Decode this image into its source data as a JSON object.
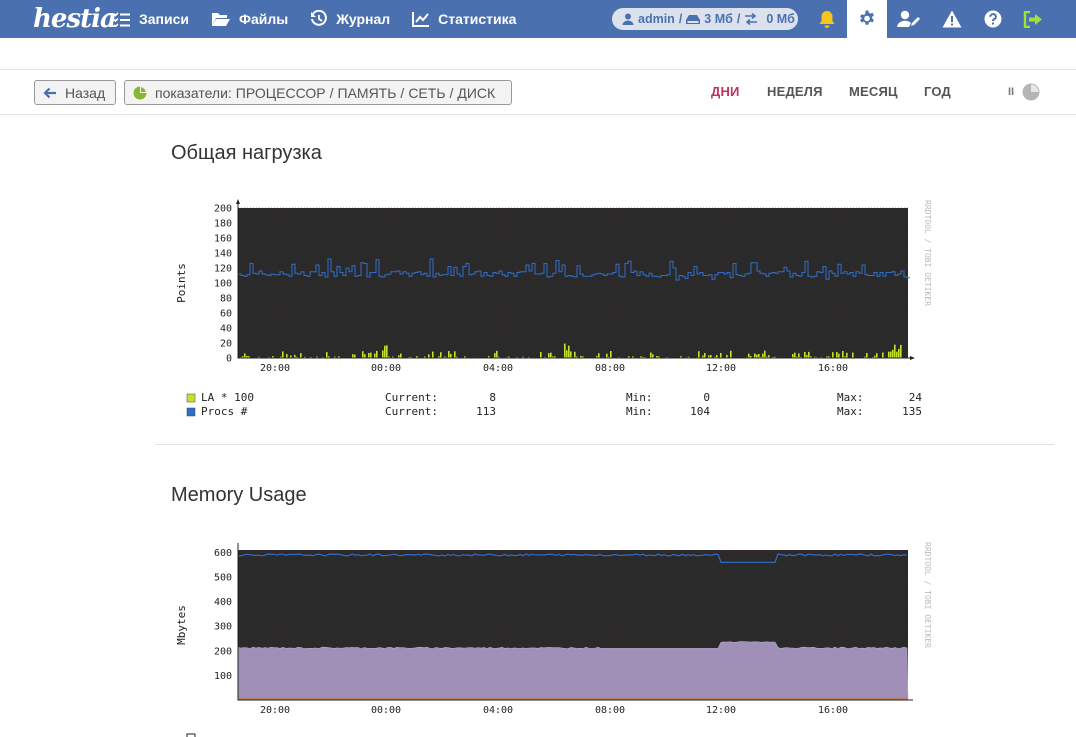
{
  "app": {
    "logo": "hestia"
  },
  "nav": {
    "items": [
      {
        "label": "Записи",
        "icon": "list-check-icon"
      },
      {
        "label": "Файлы",
        "icon": "folder-open-icon"
      },
      {
        "label": "Журнал",
        "icon": "history-icon"
      },
      {
        "label": "Статистика",
        "icon": "chart-line-icon"
      }
    ]
  },
  "user": {
    "name": "admin",
    "disk": "3 Мб",
    "traffic": "0 Мб"
  },
  "toolbar": {
    "back_label": "Назад",
    "metrics_prefix": "показатели:",
    "metrics": [
      "ПРОЦЕССОР",
      "ПАМЯТЬ",
      "СЕТЬ",
      "ДИСК"
    ],
    "periods": [
      "ДНИ",
      "НЕДЕЛЯ",
      "МЕСЯЦ",
      "ГОД"
    ],
    "active_period": "ДНИ",
    "pause_label": "II"
  },
  "charts": {
    "load": {
      "title": "Общая нагрузка",
      "ylabel": "Points",
      "watermark": "RRDTOOL / TOBI OETIKER",
      "legend": [
        {
          "name": "LA * 100",
          "color": "#c8e028",
          "current": "8",
          "min": "0",
          "max": "24"
        },
        {
          "name": "Procs #",
          "color": "#2f6ec8",
          "current": "113",
          "min": "104",
          "max": "135"
        }
      ],
      "legend_labels": {
        "current": "Current:",
        "min": "Min:",
        "max": "Max:"
      }
    },
    "memory": {
      "title": "Memory Usage",
      "ylabel": "Mbytes",
      "watermark": "RRDTOOL / TOBI OETIKER"
    }
  },
  "chart_data": [
    {
      "type": "line",
      "title": "Общая нагрузка",
      "ylabel": "Points",
      "ylim": [
        0,
        200
      ],
      "yticks": [
        0,
        20,
        40,
        60,
        80,
        100,
        120,
        140,
        160,
        180,
        200
      ],
      "xticks": [
        "20:00",
        "00:00",
        "04:00",
        "08:00",
        "12:00",
        "16:00"
      ],
      "series": [
        {
          "name": "LA * 100",
          "color": "#c8e028",
          "summary": {
            "current": 8,
            "min": 0,
            "max": 24
          }
        },
        {
          "name": "Procs #",
          "color": "#2f6ec8",
          "summary": {
            "current": 113,
            "min": 104,
            "max": 135
          }
        }
      ]
    },
    {
      "type": "area",
      "title": "Memory Usage",
      "ylabel": "Mbytes",
      "yticks": [
        100,
        200,
        300,
        400,
        500,
        600
      ],
      "xticks": [
        "20:00",
        "00:00",
        "04:00",
        "08:00",
        "12:00",
        "16:00"
      ],
      "series": [
        {
          "color": "#2f6ec8",
          "approx": [
            590,
            590,
            585,
            590,
            590,
            590,
            560,
            590,
            590
          ]
        },
        {
          "color": "#a090b8",
          "approx": [
            215,
            212,
            210,
            212,
            210,
            212,
            238,
            212,
            208
          ]
        },
        {
          "color": "#e07020",
          "approx": [
            3,
            3,
            3,
            3,
            3,
            3,
            3,
            3,
            3
          ]
        }
      ]
    }
  ]
}
